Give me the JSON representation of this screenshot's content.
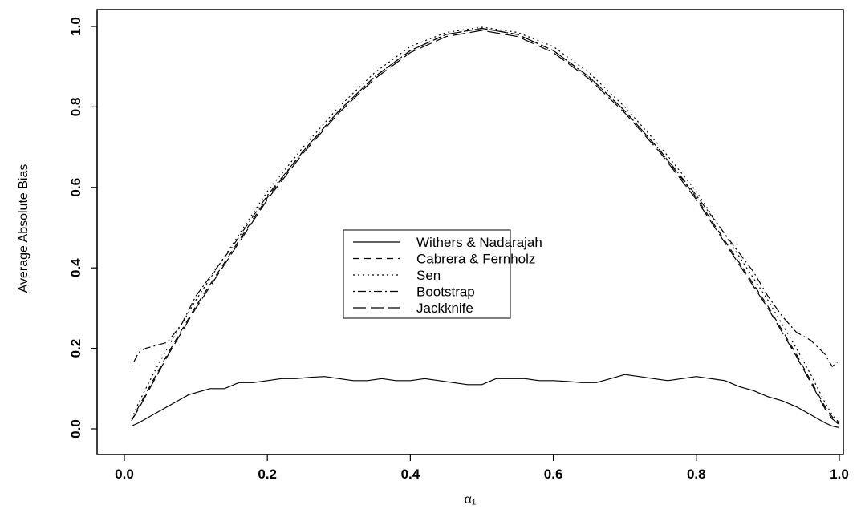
{
  "chart_data": {
    "type": "line",
    "xlabel": "α₁",
    "ylabel": "Average Absolute Bias",
    "xlim": [
      0.0,
      1.0
    ],
    "ylim": [
      0.0,
      1.0
    ],
    "xticks": [
      "0.0",
      "0.2",
      "0.4",
      "0.6",
      "0.8",
      "1.0"
    ],
    "yticks": [
      "0.0",
      "0.2",
      "0.4",
      "0.6",
      "0.8",
      "1.0"
    ],
    "grid": false,
    "legend_position": "center",
    "series": [
      {
        "name": "Withers & Nadarajah",
        "line_style": "solid",
        "x": [
          0.01,
          0.02,
          0.03,
          0.04,
          0.05,
          0.06,
          0.07,
          0.08,
          0.09,
          0.1,
          0.12,
          0.14,
          0.16,
          0.18,
          0.2,
          0.22,
          0.24,
          0.26,
          0.28,
          0.3,
          0.32,
          0.34,
          0.36,
          0.38,
          0.4,
          0.42,
          0.44,
          0.46,
          0.48,
          0.5,
          0.52,
          0.54,
          0.56,
          0.58,
          0.6,
          0.62,
          0.64,
          0.66,
          0.68,
          0.7,
          0.72,
          0.74,
          0.76,
          0.78,
          0.8,
          0.82,
          0.84,
          0.86,
          0.88,
          0.9,
          0.92,
          0.94,
          0.95,
          0.96,
          0.97,
          0.98,
          0.99,
          1.0
        ],
        "y": [
          0.007,
          0.015,
          0.025,
          0.035,
          0.045,
          0.055,
          0.065,
          0.075,
          0.085,
          0.09,
          0.1,
          0.1,
          0.115,
          0.115,
          0.12,
          0.125,
          0.125,
          0.128,
          0.13,
          0.125,
          0.12,
          0.12,
          0.125,
          0.12,
          0.12,
          0.125,
          0.12,
          0.115,
          0.11,
          0.11,
          0.125,
          0.125,
          0.125,
          0.12,
          0.12,
          0.118,
          0.115,
          0.115,
          0.125,
          0.135,
          0.13,
          0.125,
          0.12,
          0.125,
          0.13,
          0.125,
          0.12,
          0.105,
          0.095,
          0.08,
          0.07,
          0.055,
          0.045,
          0.035,
          0.025,
          0.015,
          0.007,
          0.003
        ]
      },
      {
        "name": "Cabrera & Fernholz",
        "line_style": "dashed",
        "x": [
          0.01,
          0.02,
          0.04,
          0.06,
          0.08,
          0.1,
          0.15,
          0.2,
          0.25,
          0.3,
          0.35,
          0.4,
          0.45,
          0.5,
          0.55,
          0.6,
          0.65,
          0.7,
          0.75,
          0.8,
          0.85,
          0.9,
          0.92,
          0.94,
          0.96,
          0.98,
          0.99,
          1.0
        ],
        "y": [
          0.02,
          0.055,
          0.12,
          0.185,
          0.245,
          0.305,
          0.44,
          0.575,
          0.69,
          0.79,
          0.875,
          0.94,
          0.98,
          0.995,
          0.98,
          0.94,
          0.875,
          0.79,
          0.69,
          0.575,
          0.44,
          0.305,
          0.245,
          0.185,
          0.12,
          0.055,
          0.03,
          0.012
        ]
      },
      {
        "name": "Sen",
        "line_style": "dotted",
        "x": [
          0.01,
          0.02,
          0.04,
          0.06,
          0.08,
          0.1,
          0.15,
          0.2,
          0.25,
          0.3,
          0.35,
          0.4,
          0.45,
          0.5,
          0.55,
          0.6,
          0.65,
          0.7,
          0.75,
          0.8,
          0.85,
          0.9,
          0.92,
          0.94,
          0.96,
          0.98,
          0.99,
          1.0
        ],
        "y": [
          0.025,
          0.065,
          0.135,
          0.2,
          0.26,
          0.32,
          0.455,
          0.59,
          0.7,
          0.8,
          0.885,
          0.95,
          0.985,
          0.998,
          0.985,
          0.95,
          0.885,
          0.8,
          0.7,
          0.59,
          0.455,
          0.32,
          0.26,
          0.2,
          0.135,
          0.065,
          0.035,
          0.015
        ]
      },
      {
        "name": "Bootstrap",
        "line_style": "dotdash",
        "x": [
          0.01,
          0.02,
          0.03,
          0.04,
          0.05,
          0.06,
          0.08,
          0.1,
          0.15,
          0.2,
          0.25,
          0.3,
          0.35,
          0.4,
          0.45,
          0.5,
          0.55,
          0.6,
          0.65,
          0.7,
          0.75,
          0.8,
          0.85,
          0.88,
          0.9,
          0.92,
          0.94,
          0.96,
          0.98,
          0.99,
          1.0
        ],
        "y": [
          0.155,
          0.19,
          0.2,
          0.205,
          0.21,
          0.215,
          0.26,
          0.33,
          0.45,
          0.58,
          0.69,
          0.79,
          0.875,
          0.94,
          0.98,
          0.995,
          0.98,
          0.94,
          0.875,
          0.79,
          0.69,
          0.58,
          0.46,
          0.39,
          0.33,
          0.28,
          0.24,
          0.22,
          0.185,
          0.155,
          0.17
        ]
      },
      {
        "name": "Jackknife",
        "line_style": "longdash",
        "x": [
          0.01,
          0.02,
          0.04,
          0.06,
          0.08,
          0.1,
          0.15,
          0.2,
          0.25,
          0.3,
          0.35,
          0.4,
          0.45,
          0.5,
          0.55,
          0.6,
          0.65,
          0.7,
          0.75,
          0.8,
          0.85,
          0.9,
          0.92,
          0.94,
          0.96,
          0.98,
          0.99,
          1.0
        ],
        "y": [
          0.02,
          0.05,
          0.115,
          0.18,
          0.24,
          0.3,
          0.435,
          0.57,
          0.685,
          0.785,
          0.87,
          0.935,
          0.975,
          0.99,
          0.975,
          0.935,
          0.87,
          0.785,
          0.685,
          0.57,
          0.435,
          0.3,
          0.24,
          0.18,
          0.115,
          0.05,
          0.025,
          0.01
        ]
      }
    ]
  }
}
